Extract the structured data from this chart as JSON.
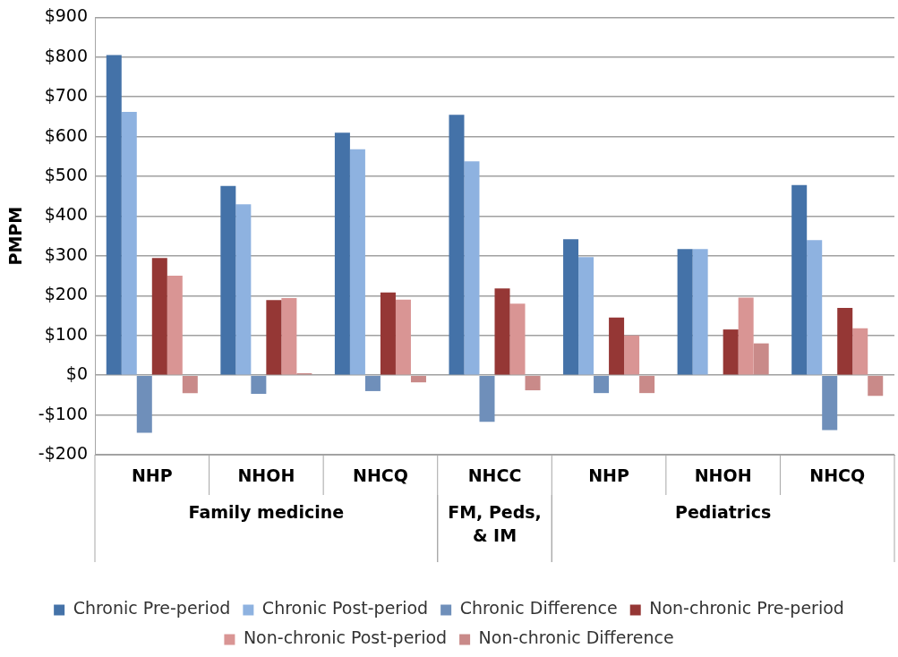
{
  "chart_data": {
    "type": "bar",
    "ylabel": "PMPM",
    "categories": [
      "NHP",
      "NHOH",
      "NHCQ",
      "NHCC",
      "NHP",
      "NHOH",
      "NHCQ"
    ],
    "series": [
      {
        "name": "Chronic Pre-period",
        "color": "#4472a8",
        "values": [
          805,
          476,
          610,
          655,
          342,
          317,
          478
        ]
      },
      {
        "name": "Chronic Post-period",
        "color": "#8eb2e0",
        "values": [
          662,
          430,
          568,
          538,
          297,
          317,
          340
        ]
      },
      {
        "name": "Chronic Difference",
        "color": "#6f8fba",
        "values": [
          -145,
          -47,
          -40,
          -117,
          -45,
          0,
          -138
        ]
      },
      {
        "name": "Non-chronic Pre-period",
        "color": "#953735",
        "values": [
          295,
          189,
          208,
          218,
          145,
          115,
          169
        ]
      },
      {
        "name": "Non-chronic Post-period",
        "color": "#d99594",
        "values": [
          250,
          194,
          190,
          180,
          100,
          195,
          118
        ]
      },
      {
        "name": "Non-chronic Difference",
        "color": "#c98a89",
        "values": [
          -45,
          5,
          -18,
          -38,
          -45,
          80,
          -52
        ]
      }
    ],
    "annotations": [
      "Family medicine",
      "FM, Peds, & IM",
      "Pediatrics"
    ],
    "ylim": [
      -200,
      900
    ],
    "yticks": [
      {
        "value": -200,
        "label": "-$200"
      },
      {
        "value": -100,
        "label": "-$100"
      },
      {
        "value": 0,
        "label": "$0"
      },
      {
        "value": 100,
        "label": "$100"
      },
      {
        "value": 200,
        "label": "$200"
      },
      {
        "value": 300,
        "label": "$300"
      },
      {
        "value": 400,
        "label": "$400"
      },
      {
        "value": 500,
        "label": "$500"
      },
      {
        "value": 600,
        "label": "$600"
      },
      {
        "value": 700,
        "label": "$700"
      },
      {
        "value": 800,
        "label": "$800"
      },
      {
        "value": 900,
        "label": "$900"
      }
    ],
    "grid": "y",
    "legend": "bottom"
  }
}
